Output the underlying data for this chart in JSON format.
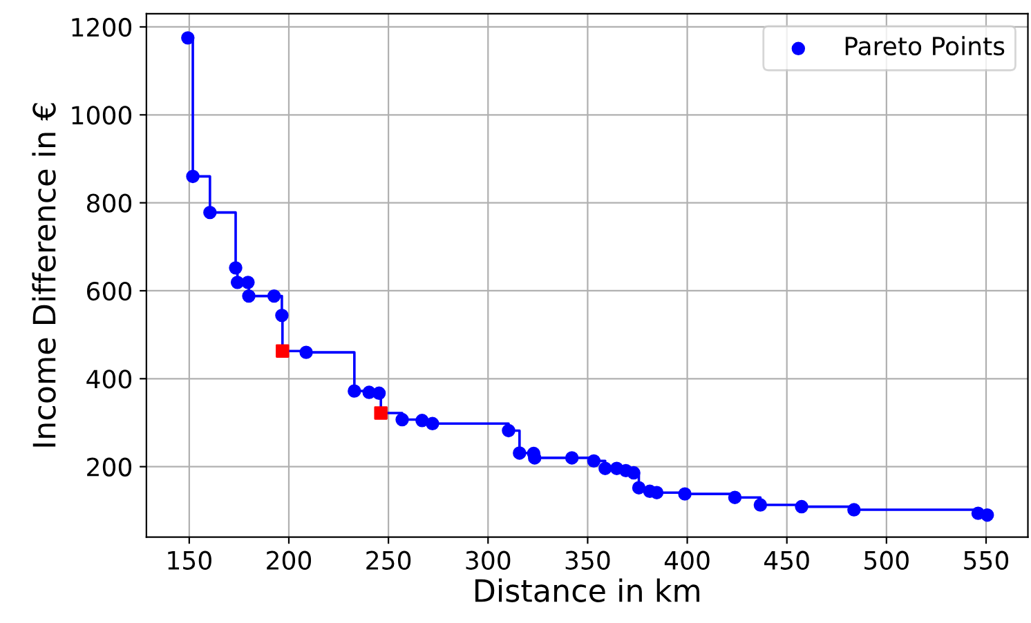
{
  "chart_data": {
    "type": "scatter",
    "xlabel": "Distance in km",
    "ylabel": "Income Difference in €",
    "xlim": [
      128.5,
      571
    ],
    "ylim": [
      40,
      1230
    ],
    "xticks": [
      150,
      200,
      250,
      300,
      350,
      400,
      450,
      500,
      550
    ],
    "yticks": [
      200,
      400,
      600,
      800,
      1000,
      1200
    ],
    "grid": true,
    "legend": "top right",
    "series": [
      {
        "type": "step",
        "color": "#0000ff",
        "marker": "none",
        "line_style": "solid",
        "x": [
          149.3,
          151.8,
          160.4,
          173.3,
          174.2,
          179.5,
          179.9,
          192.6,
          196.5,
          196.8,
          208.7,
          232.9,
          240.3,
          245.3,
          246.2,
          256.9,
          266.9,
          272.1,
          310.3,
          315.8,
          322.9,
          323.4,
          342.1,
          353.1,
          358.8,
          364.6,
          369.2,
          373.1,
          375.7,
          381.2,
          384.7,
          398.8,
          423.9,
          436.7,
          457.4,
          483.7,
          546.0,
          550.6
        ],
        "values": [
          1175,
          860,
          778,
          652,
          619,
          619,
          588,
          588,
          544,
          463,
          460,
          372,
          369,
          367,
          322,
          307,
          305,
          298,
          282,
          231,
          230,
          220,
          220,
          213,
          196,
          196,
          191,
          186,
          152,
          144,
          141,
          138,
          130,
          113,
          109,
          102,
          94,
          90
        ]
      },
      {
        "name": "Pareto Points",
        "color": "#0000ff",
        "marker": "circle",
        "x": [
          149.3,
          151.8,
          160.4,
          173.3,
          174.2,
          179.5,
          179.9,
          192.6,
          196.5,
          208.7,
          232.9,
          240.3,
          245.3,
          256.9,
          266.9,
          272.1,
          310.3,
          315.8,
          322.9,
          323.4,
          342.1,
          353.1,
          358.8,
          364.6,
          369.2,
          373.1,
          375.7,
          381.2,
          384.7,
          398.8,
          423.9,
          436.7,
          457.4,
          483.7,
          546.0,
          550.6
        ],
        "values": [
          1175,
          860,
          778,
          652,
          619,
          619,
          588,
          588,
          544,
          460,
          372,
          369,
          367,
          307,
          305,
          298,
          282,
          231,
          230,
          220,
          220,
          213,
          196,
          196,
          191,
          186,
          152,
          144,
          141,
          138,
          130,
          113,
          109,
          102,
          94,
          90
        ]
      },
      {
        "color": "#ff0000",
        "marker": "square",
        "x": [
          196.8,
          246.2
        ],
        "values": [
          463,
          322
        ]
      }
    ]
  }
}
